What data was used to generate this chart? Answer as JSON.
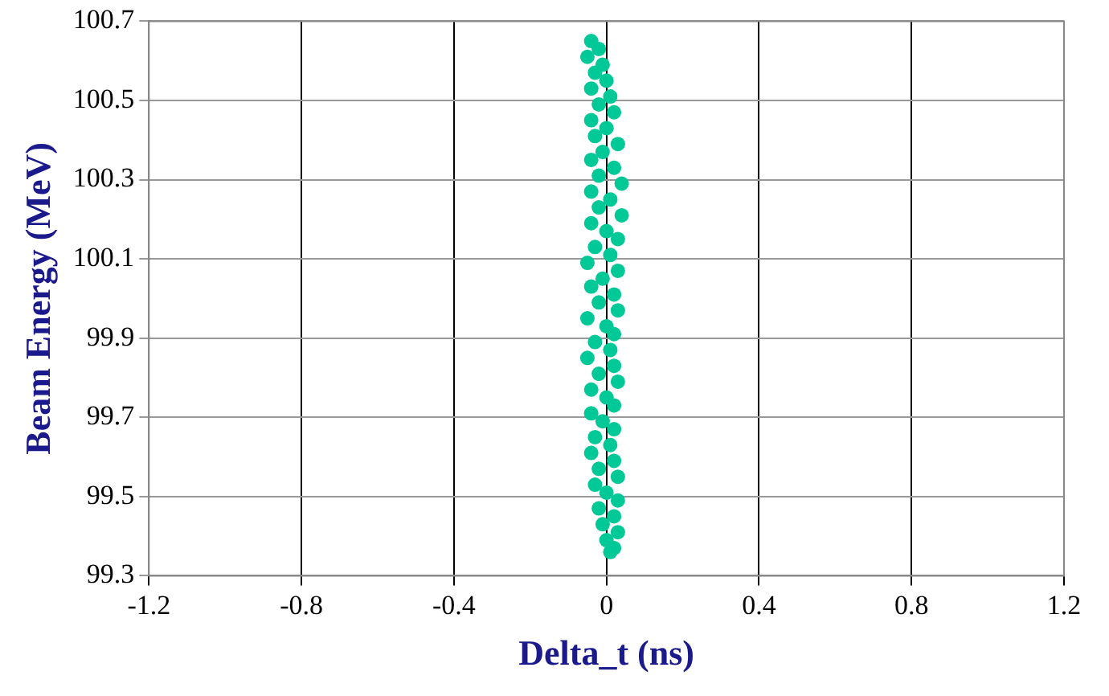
{
  "chart_data": {
    "type": "scatter",
    "xlabel": "Delta_t (ns)",
    "ylabel": "Beam Energy (MeV)",
    "xlim": [
      -1.2,
      1.2
    ],
    "xticks": [
      -1.2,
      -0.8,
      -0.4,
      0,
      0.4,
      0.8,
      1.2
    ],
    "ylim": [
      99.3,
      100.7
    ],
    "yticks": [
      99.3,
      99.5,
      99.7,
      99.9,
      100.1,
      100.3,
      100.5,
      100.7
    ],
    "grid": true,
    "marker": "circle",
    "legend": false,
    "series": [
      {
        "color": "#00c896",
        "x": [
          -0.04,
          -0.02,
          -0.05,
          -0.01,
          -0.03,
          0.0,
          -0.04,
          0.01,
          -0.02,
          0.02,
          -0.04,
          0.0,
          -0.03,
          0.03,
          -0.01,
          -0.04,
          0.02,
          -0.02,
          0.04,
          -0.04,
          0.01,
          -0.02,
          0.04,
          -0.04,
          0.0,
          0.03,
          -0.03,
          0.01,
          -0.05,
          0.03,
          -0.01,
          -0.04,
          0.02,
          -0.02,
          0.03,
          -0.05,
          0.0,
          0.02,
          -0.03,
          0.01,
          -0.05,
          0.02,
          -0.02,
          0.03,
          -0.04,
          0.0,
          0.02,
          -0.04,
          -0.01,
          0.02,
          -0.03,
          0.01,
          -0.04,
          0.02,
          -0.02,
          0.03,
          -0.03,
          0.0,
          0.03,
          -0.02,
          0.02,
          -0.01,
          0.03,
          0.0,
          0.02,
          0.01
        ],
        "values": [
          100.65,
          100.63,
          100.61,
          100.59,
          100.57,
          100.55,
          100.53,
          100.51,
          100.49,
          100.47,
          100.45,
          100.43,
          100.41,
          100.39,
          100.37,
          100.35,
          100.33,
          100.31,
          100.29,
          100.27,
          100.25,
          100.23,
          100.21,
          100.19,
          100.17,
          100.15,
          100.13,
          100.11,
          100.09,
          100.07,
          100.05,
          100.03,
          100.01,
          99.99,
          99.97,
          99.95,
          99.93,
          99.91,
          99.89,
          99.87,
          99.85,
          99.83,
          99.81,
          99.79,
          99.77,
          99.75,
          99.73,
          99.71,
          99.69,
          99.67,
          99.65,
          99.63,
          99.61,
          99.59,
          99.57,
          99.55,
          99.53,
          99.51,
          99.49,
          99.47,
          99.45,
          99.43,
          99.41,
          99.39,
          99.37,
          99.36
        ]
      }
    ]
  }
}
